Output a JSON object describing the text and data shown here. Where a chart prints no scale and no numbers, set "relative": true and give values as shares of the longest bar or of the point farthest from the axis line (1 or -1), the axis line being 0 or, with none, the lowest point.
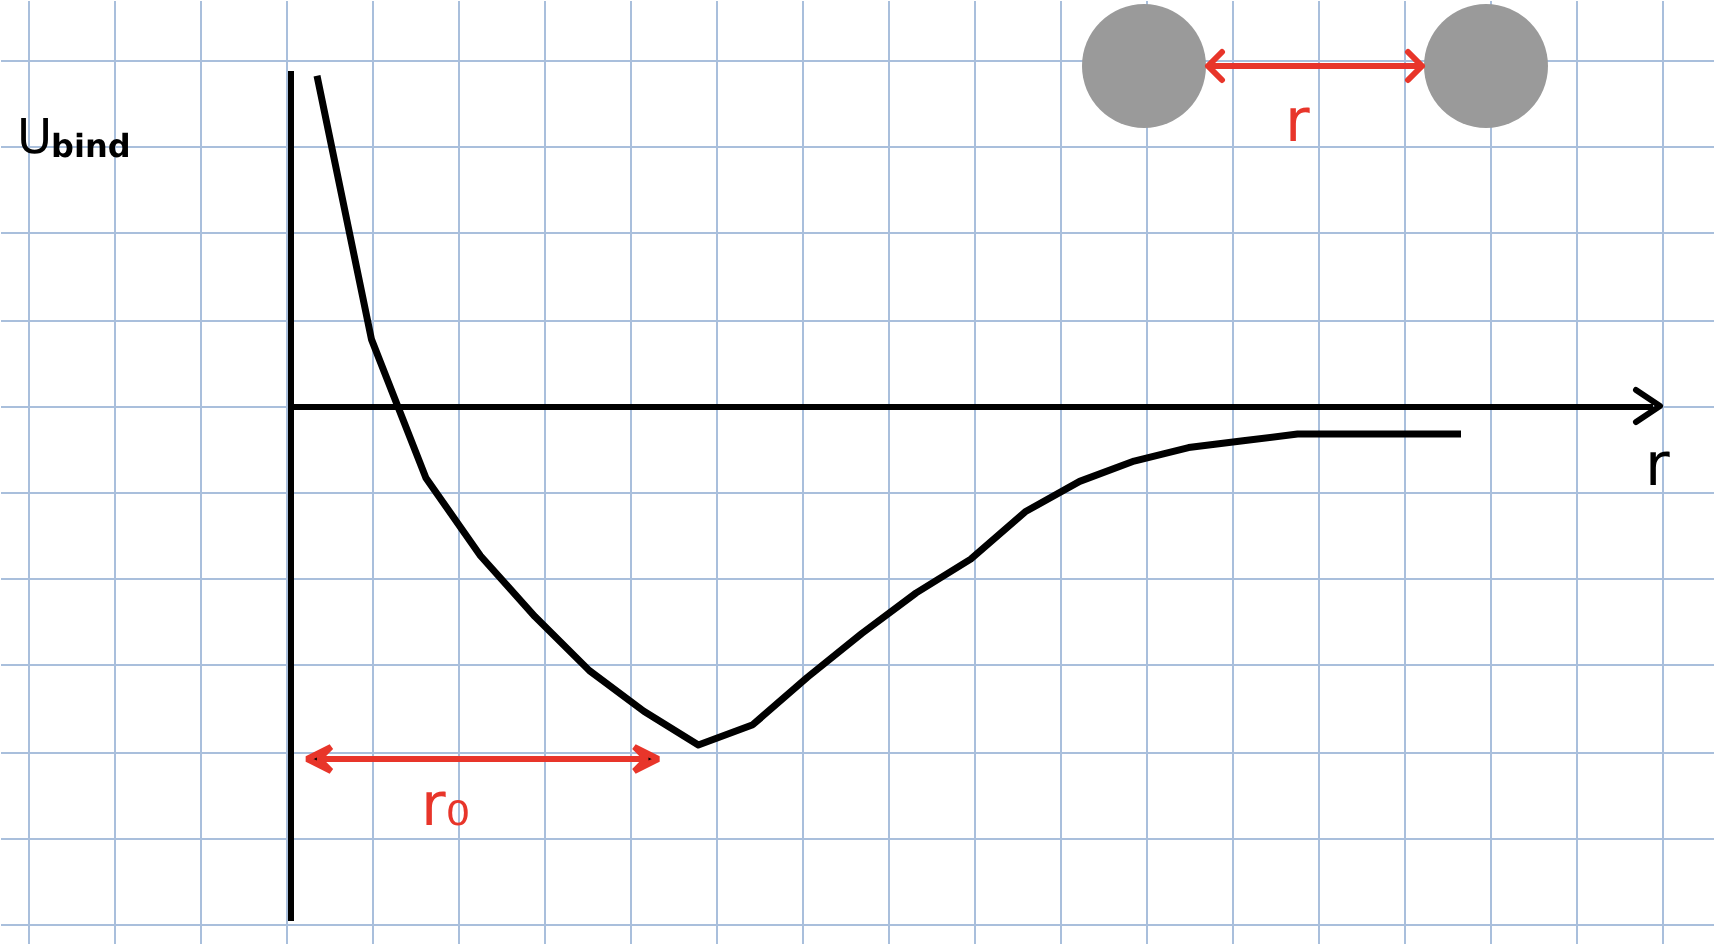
{
  "chart_data": {
    "type": "line",
    "relative": true,
    "grid": true,
    "marker": "none",
    "line_style": "solid",
    "ylabel": "U$_{bind}$",
    "xlabel": "r",
    "categories": [
      null,
      null,
      null,
      null,
      null,
      null,
      null,
      null,
      null,
      null,
      null,
      null,
      null,
      null,
      null,
      null,
      null,
      null,
      null,
      null,
      null,
      null
    ],
    "series": [
      {
        "color": "#000000",
        "values": [
          0.98,
          0.2,
          -0.21,
          -0.44,
          -0.62,
          -0.78,
          -0.9,
          -1.0,
          -0.94,
          -0.8,
          -0.67,
          -0.55,
          -0.45,
          -0.31,
          -0.22,
          -0.16,
          -0.12,
          -0.1,
          -0.08,
          -0.08,
          -0.08,
          -0.08
        ]
      }
    ],
    "annotations": [
      "r₀",
      "r"
    ]
  }
}
